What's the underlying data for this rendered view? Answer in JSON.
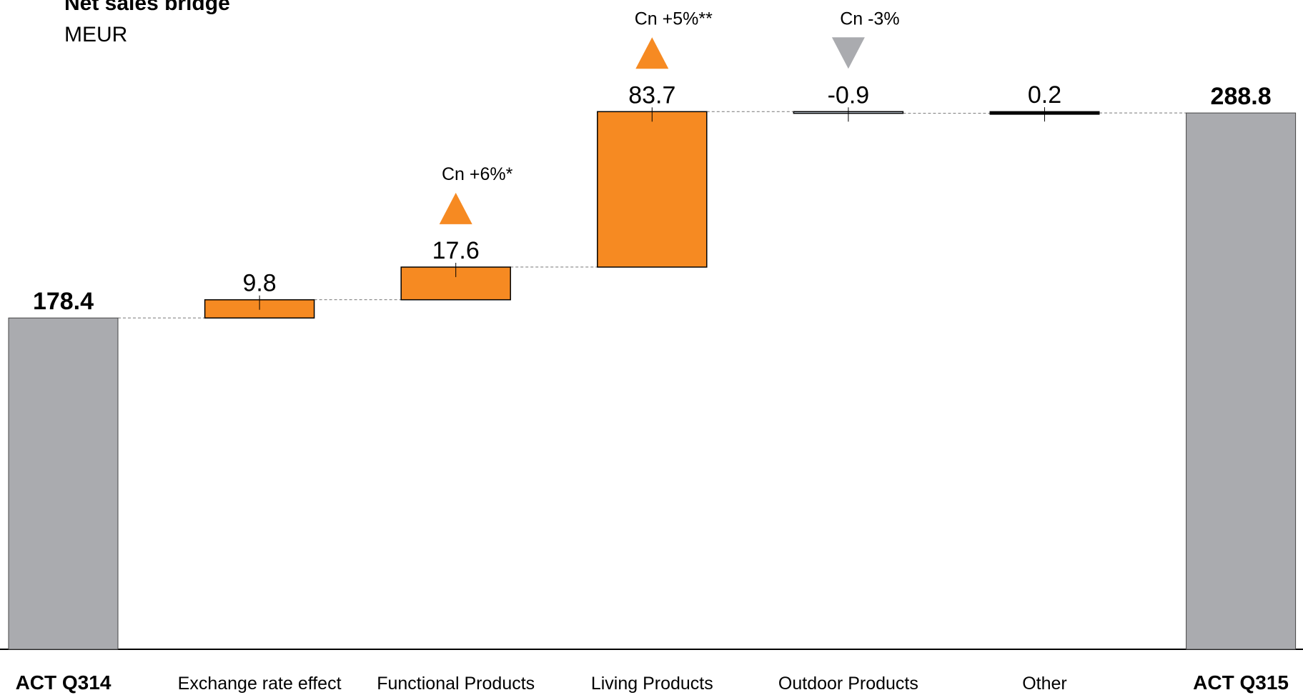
{
  "chart_data": {
    "type": "bar",
    "subtype": "waterfall",
    "title": "Net sales bridge",
    "subtitle": "MEUR",
    "ylim": [
      0,
      300
    ],
    "categories": [
      "ACT Q314",
      "Exchange rate effect",
      "Functional Products",
      "Living Products",
      "Outdoor Products",
      "Other",
      "ACT Q315"
    ],
    "values": [
      178.4,
      9.8,
      17.6,
      83.7,
      -0.9,
      0.2,
      288.8
    ],
    "labels": [
      "178.4",
      "9.8",
      "17.6",
      "83.7",
      "-0.9",
      "0.2",
      "288.8"
    ],
    "kinds": [
      "total",
      "delta",
      "delta",
      "delta",
      "delta",
      "delta",
      "total"
    ],
    "annotations": [
      {
        "category": "Functional Products",
        "text": "Cn +6%*",
        "arrow": "up",
        "color": "#f68a22"
      },
      {
        "category": "Living Products",
        "text": "Cn +5%**",
        "arrow": "up",
        "color": "#f68a22"
      },
      {
        "category": "Outdoor Products",
        "text": "Cn -3%",
        "arrow": "down",
        "color": "#aaabaf"
      }
    ],
    "colors": {
      "total": "#aaabaf",
      "increase": "#f68a22",
      "decrease": "#dbe6f4",
      "other": "#000000",
      "connector": "#777777"
    },
    "grid": false,
    "legend": "none"
  }
}
